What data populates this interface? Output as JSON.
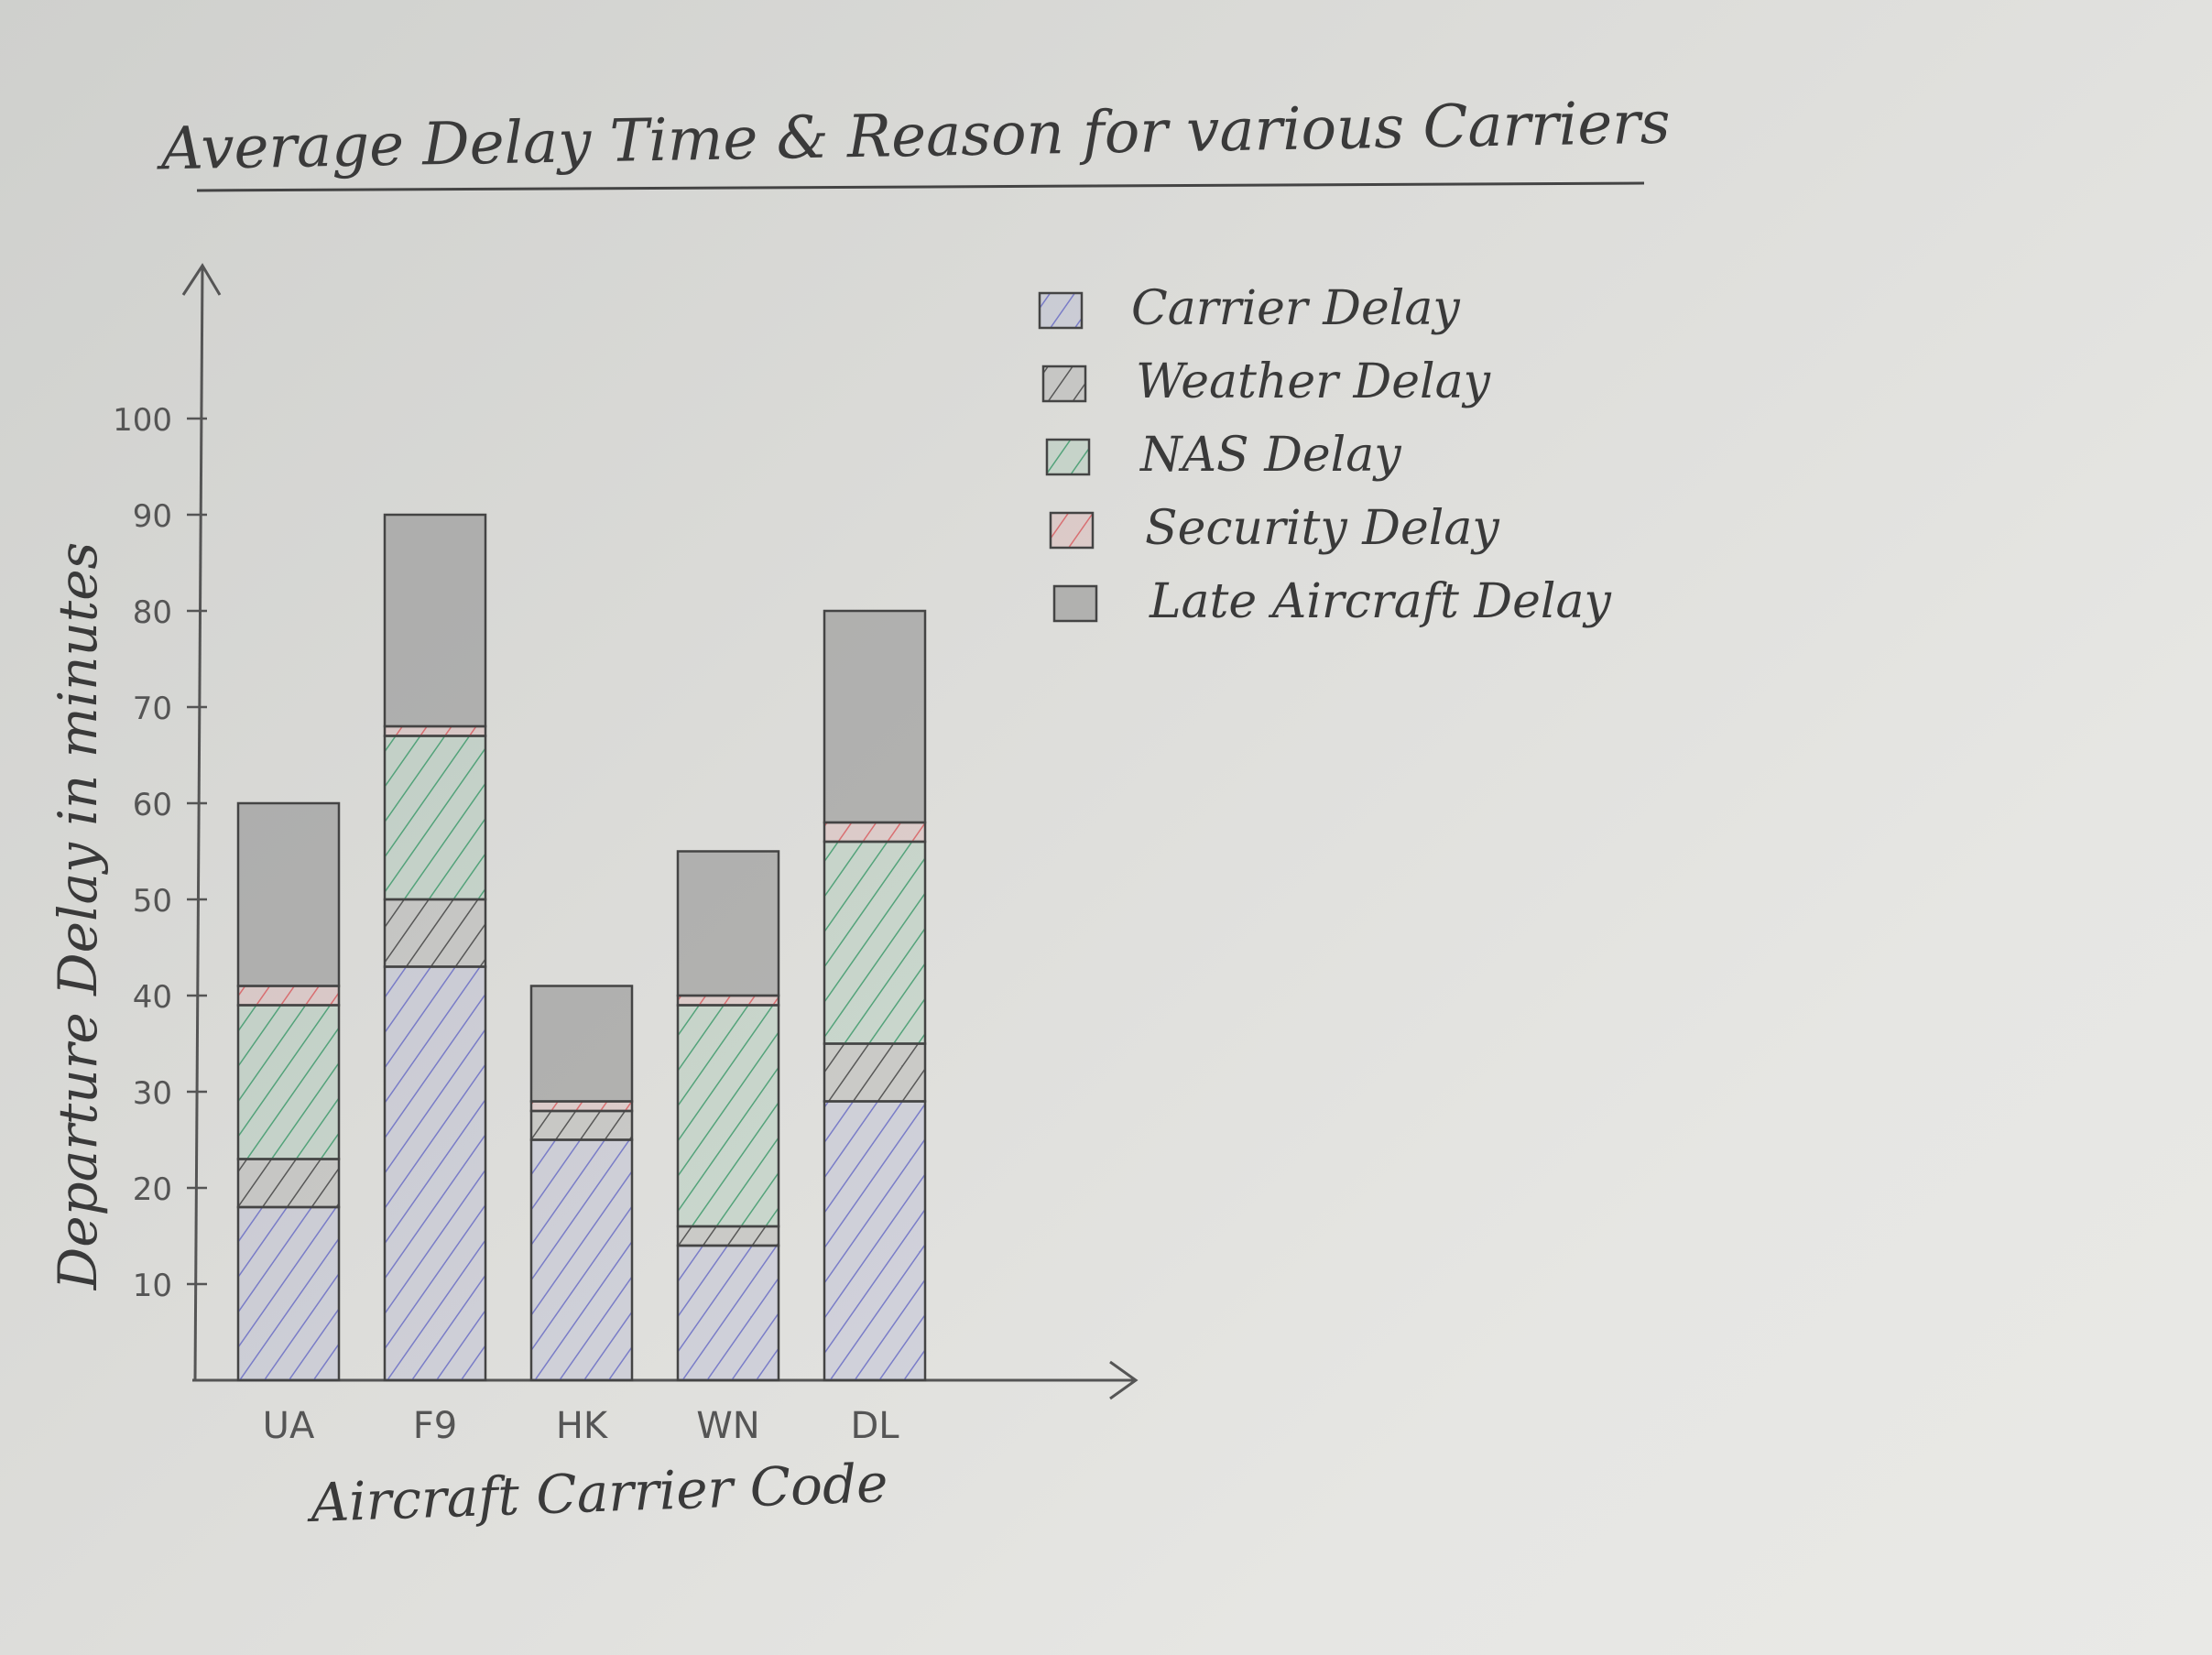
{
  "chart_data": {
    "type": "bar",
    "stacked": true,
    "title": "Average Delay Time & Reason for various Carriers",
    "xlabel": "Aircraft Carrier Code",
    "ylabel": "Departure Delay in minutes",
    "categories": [
      "UA",
      "F9",
      "HK",
      "WN",
      "DL"
    ],
    "yticks": [
      10,
      20,
      30,
      40,
      50,
      60,
      70,
      80,
      90,
      100
    ],
    "ylim": [
      0,
      115
    ],
    "legend_position": "top-right",
    "grid": false,
    "series": [
      {
        "name": "Carrier Delay",
        "color": "#6b6fc4",
        "values": [
          18,
          43,
          25,
          14,
          29
        ]
      },
      {
        "name": "Weather Delay",
        "color": "#444444",
        "values": [
          5,
          7,
          3,
          2,
          6
        ]
      },
      {
        "name": "NAS Delay",
        "color": "#3f9a6c",
        "values": [
          16,
          17,
          0,
          23,
          21
        ]
      },
      {
        "name": "Security Delay",
        "color": "#d85e62",
        "values": [
          2,
          1,
          1,
          1,
          2
        ]
      },
      {
        "name": "Late Aircraft Delay",
        "color": "#8c8c8c",
        "values": [
          19,
          22,
          12,
          15,
          22
        ]
      }
    ]
  }
}
